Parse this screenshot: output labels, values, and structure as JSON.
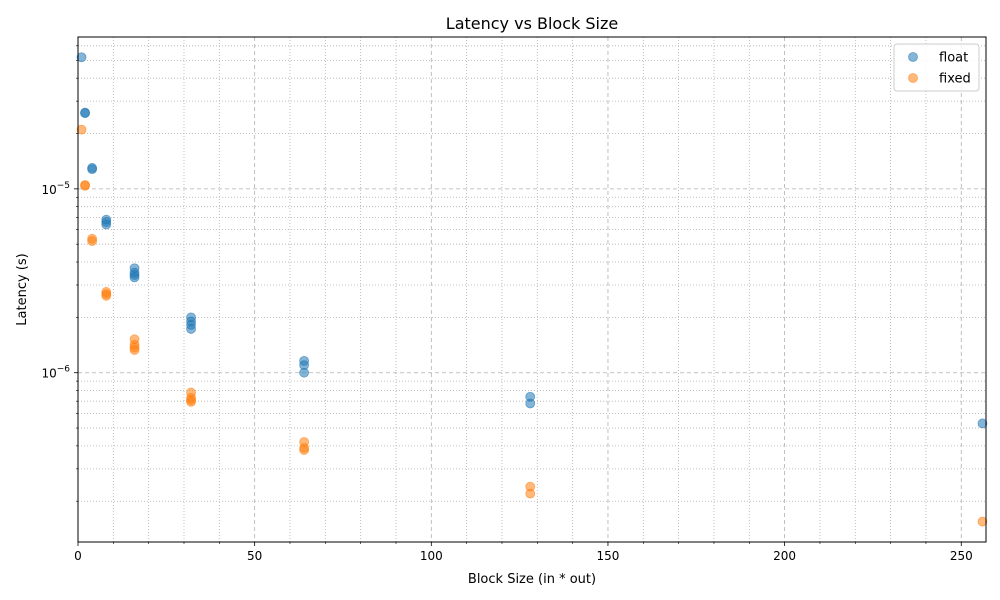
{
  "chart_data": {
    "type": "scatter",
    "title": "Latency vs Block Size",
    "xlabel": "Block Size (in * out)",
    "ylabel": "Latency (s)",
    "x_scale": "linear",
    "y_scale": "log",
    "xlim": [
      0,
      257
    ],
    "ylim": [
      1.2e-07,
      6.7e-05
    ],
    "x_ticks": [
      0,
      50,
      100,
      150,
      200,
      250
    ],
    "x_tick_labels": [
      "0",
      "50",
      "100",
      "150",
      "200",
      "250"
    ],
    "y_ticks": [
      1e-06,
      1e-05
    ],
    "y_tick_labels": [
      {
        "base": "10",
        "exp": "−6"
      },
      {
        "base": "10",
        "exp": "−5"
      }
    ],
    "grid": true,
    "legend_position": "top-right",
    "series": [
      {
        "name": "float",
        "color": "#1f77b4",
        "points": [
          {
            "x": 1,
            "y": 5.2e-05
          },
          {
            "x": 2,
            "y": 2.6e-05
          },
          {
            "x": 2,
            "y": 2.58e-05
          },
          {
            "x": 4,
            "y": 1.3e-05
          },
          {
            "x": 4,
            "y": 1.28e-05
          },
          {
            "x": 8,
            "y": 6.8e-06
          },
          {
            "x": 8,
            "y": 6.6e-06
          },
          {
            "x": 8,
            "y": 6.4e-06
          },
          {
            "x": 16,
            "y": 3.7e-06
          },
          {
            "x": 16,
            "y": 3.5e-06
          },
          {
            "x": 16,
            "y": 3.4e-06
          },
          {
            "x": 16,
            "y": 3.3e-06
          },
          {
            "x": 32,
            "y": 2e-06
          },
          {
            "x": 32,
            "y": 1.9e-06
          },
          {
            "x": 32,
            "y": 1.82e-06
          },
          {
            "x": 32,
            "y": 1.73e-06
          },
          {
            "x": 64,
            "y": 1.16e-06
          },
          {
            "x": 64,
            "y": 1.1e-06
          },
          {
            "x": 64,
            "y": 1e-06
          },
          {
            "x": 128,
            "y": 7.4e-07
          },
          {
            "x": 128,
            "y": 6.8e-07
          },
          {
            "x": 256,
            "y": 5.3e-07
          }
        ]
      },
      {
        "name": "fixed",
        "color": "#ff7f0e",
        "points": [
          {
            "x": 1,
            "y": 2.1e-05
          },
          {
            "x": 2,
            "y": 1.05e-05
          },
          {
            "x": 2,
            "y": 1.04e-05
          },
          {
            "x": 4,
            "y": 5.35e-06
          },
          {
            "x": 4,
            "y": 5.2e-06
          },
          {
            "x": 8,
            "y": 2.75e-06
          },
          {
            "x": 8,
            "y": 2.68e-06
          },
          {
            "x": 8,
            "y": 2.62e-06
          },
          {
            "x": 16,
            "y": 1.52e-06
          },
          {
            "x": 16,
            "y": 1.42e-06
          },
          {
            "x": 16,
            "y": 1.37e-06
          },
          {
            "x": 16,
            "y": 1.33e-06
          },
          {
            "x": 32,
            "y": 7.8e-07
          },
          {
            "x": 32,
            "y": 7.3e-07
          },
          {
            "x": 32,
            "y": 7.1e-07
          },
          {
            "x": 32,
            "y": 6.95e-07
          },
          {
            "x": 64,
            "y": 4.2e-07
          },
          {
            "x": 64,
            "y": 3.9e-07
          },
          {
            "x": 64,
            "y": 3.8e-07
          },
          {
            "x": 128,
            "y": 2.4e-07
          },
          {
            "x": 128,
            "y": 2.2e-07
          },
          {
            "x": 256,
            "y": 1.55e-07
          }
        ]
      }
    ]
  }
}
